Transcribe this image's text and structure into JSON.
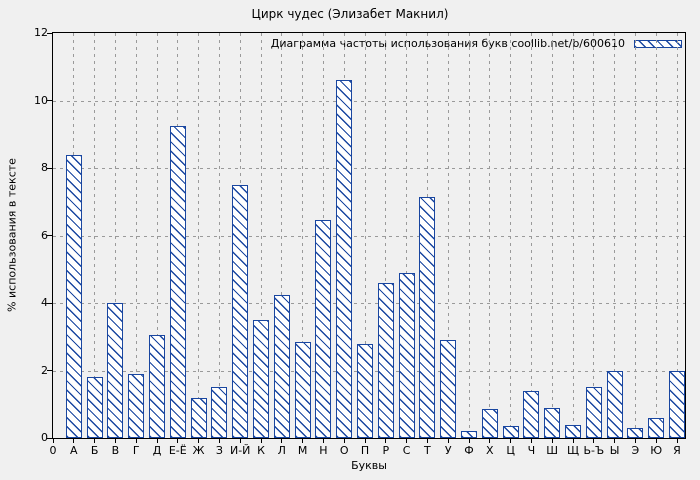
{
  "chart_data": {
    "type": "bar",
    "title": "Цирк чудес (Элизабет Макнил)",
    "legend": "Диаграмма частоты использования букв coollib.net/b/600610",
    "xlabel": "Буквы",
    "ylabel": "% использования в тексте",
    "origin_tick_label": "0",
    "ylim": [
      0,
      12
    ],
    "yticks": [
      0,
      2,
      4,
      6,
      8,
      10,
      12
    ],
    "grid": true,
    "legend_position": "top-right-inside",
    "bar_color": "#1946a0",
    "bar_fill": "diagonal-hatch",
    "categories": [
      "А",
      "Б",
      "В",
      "Г",
      "Д",
      "Е-Ё",
      "Ж",
      "З",
      "И-Й",
      "К",
      "Л",
      "М",
      "Н",
      "О",
      "П",
      "Р",
      "С",
      "Т",
      "У",
      "Ф",
      "Х",
      "Ц",
      "Ч",
      "Ш",
      "Щ",
      "Ь-Ъ",
      "Ы",
      "Э",
      "Ю",
      "Я"
    ],
    "values": [
      8.4,
      1.8,
      4.0,
      1.9,
      3.05,
      9.25,
      1.2,
      1.5,
      7.5,
      3.5,
      4.25,
      2.85,
      6.45,
      10.6,
      2.8,
      4.6,
      4.9,
      7.15,
      2.9,
      0.2,
      0.85,
      0.35,
      1.4,
      0.9,
      0.4,
      1.5,
      2.0,
      0.3,
      0.6,
      2.0
    ]
  }
}
